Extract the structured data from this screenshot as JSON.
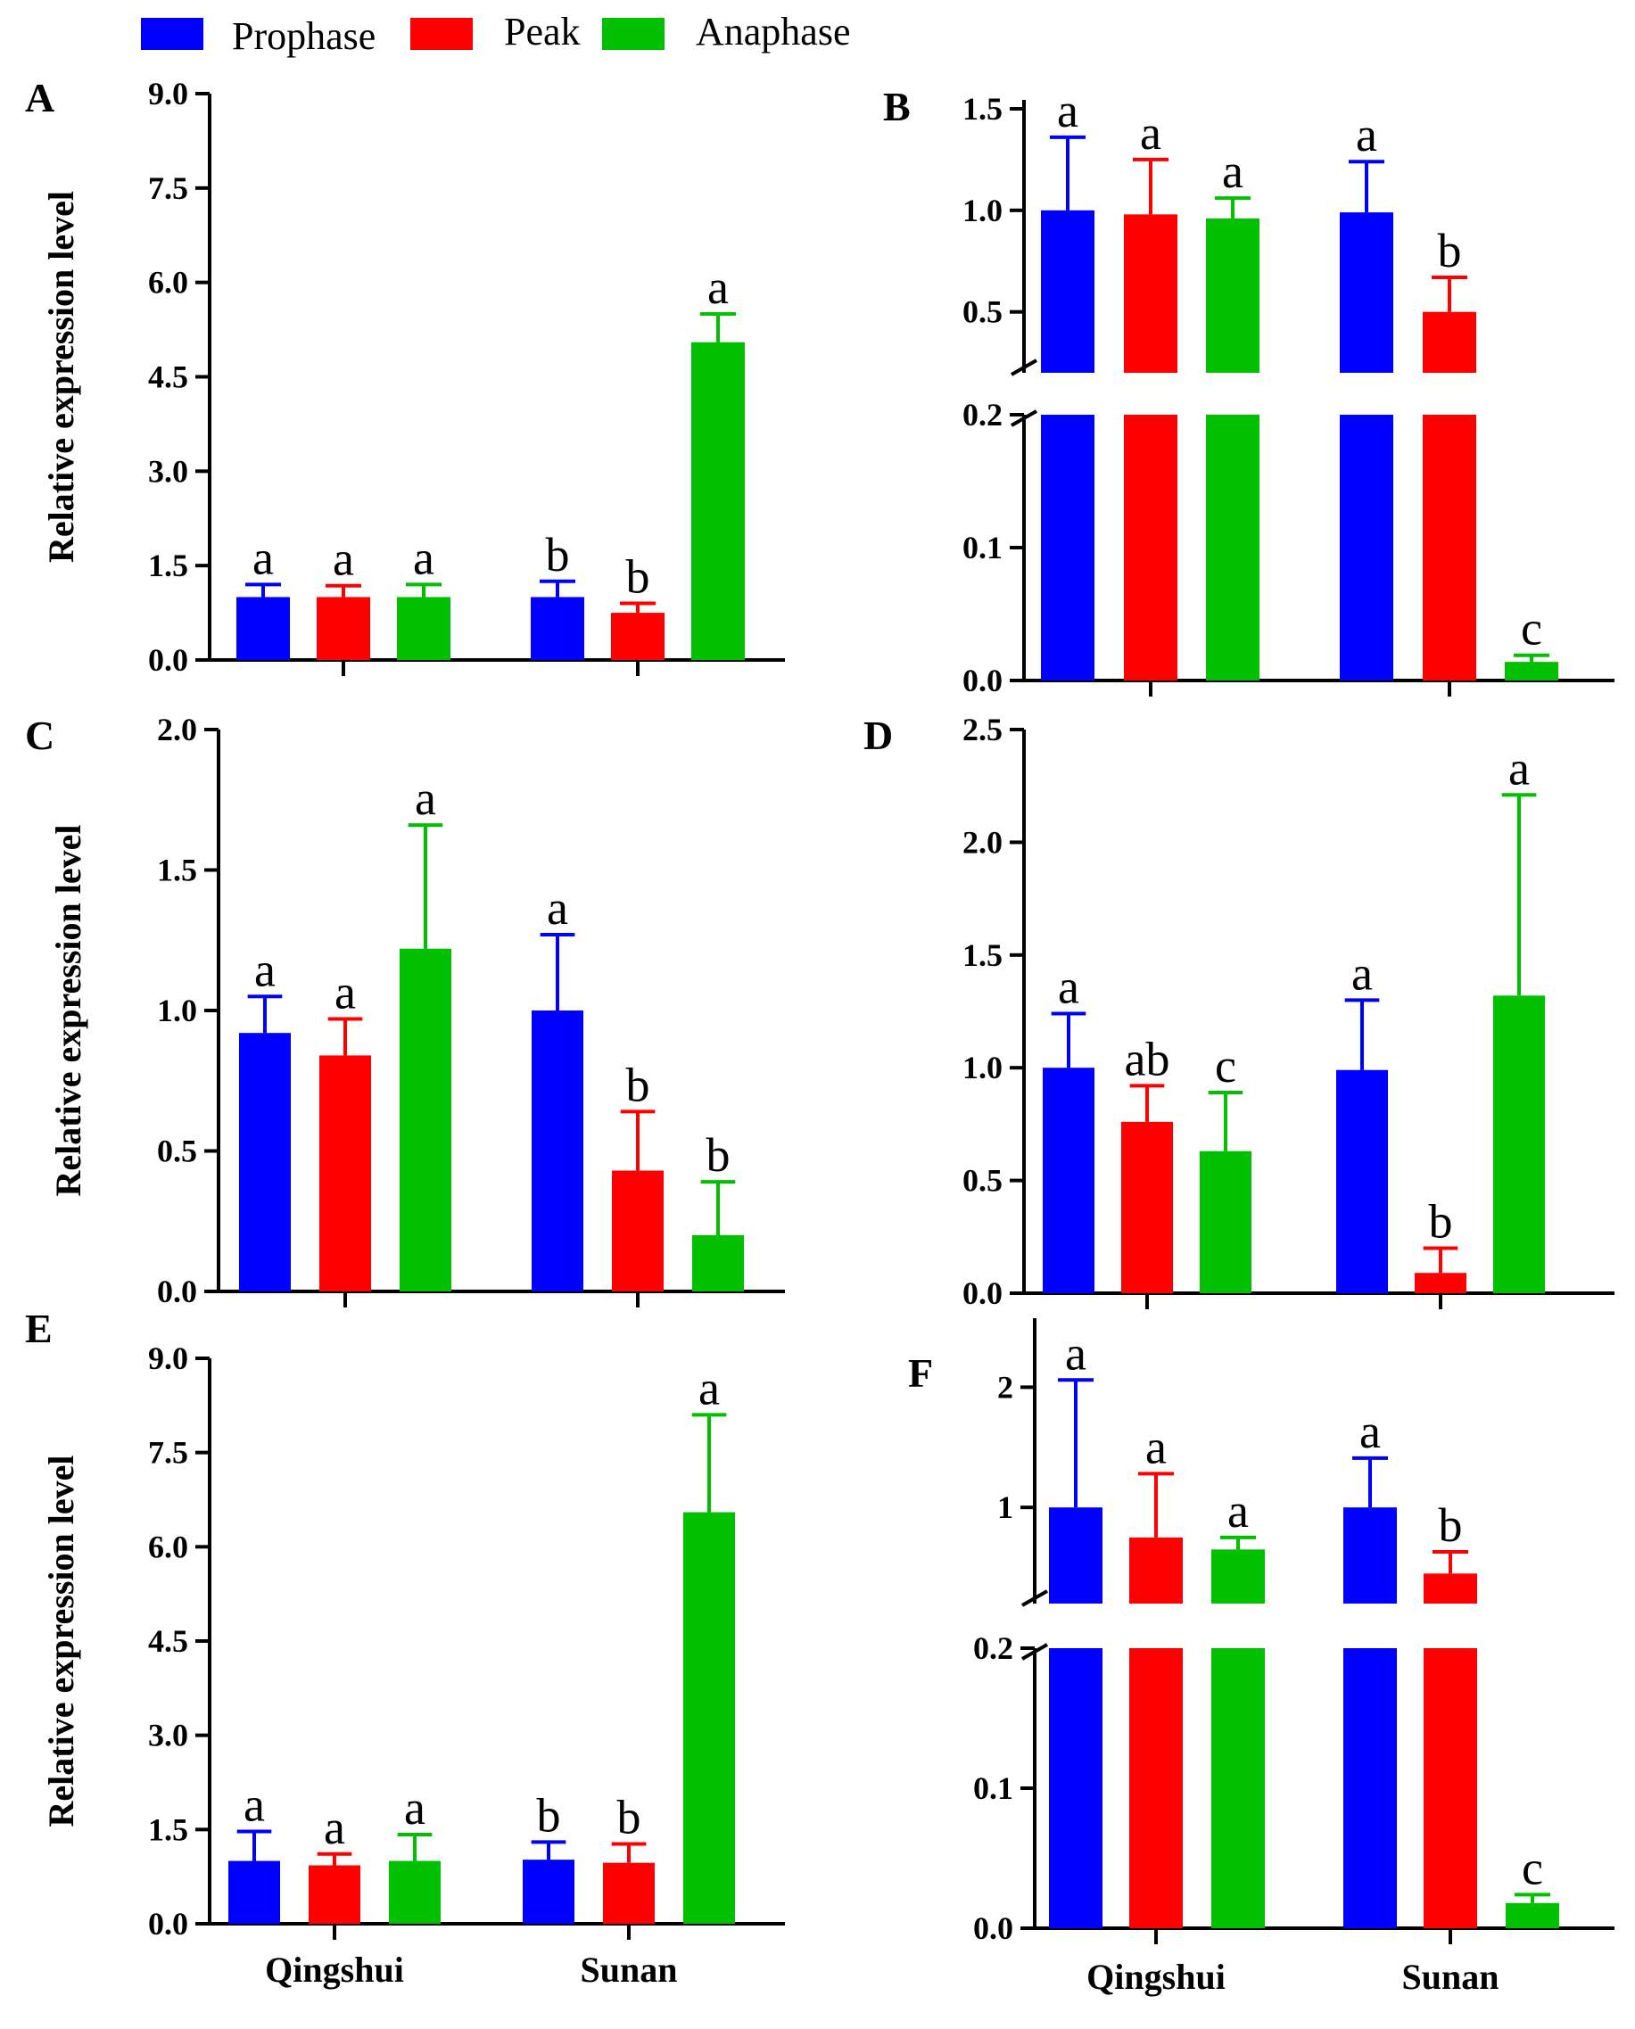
{
  "legend": [
    {
      "label": "Prophase",
      "color": "#0000ff"
    },
    {
      "label": "Peak",
      "color": "#ff0000"
    },
    {
      "label": "Anaphase",
      "color": "#00c000"
    }
  ],
  "chart_data": [
    {
      "panel": "A",
      "type": "bar",
      "ylabel": "Relative expression level",
      "categories": [
        "",
        ""
      ],
      "ylim": [
        0,
        9.0
      ],
      "yticks": [
        "0.0",
        "1.5",
        "3.0",
        "4.5",
        "6.0",
        "7.5",
        "9.0"
      ],
      "series": [
        {
          "name": "Prophase",
          "values": [
            1.0,
            1.0
          ],
          "errors": [
            0.2,
            0.25
          ],
          "letters": [
            "a",
            "b"
          ]
        },
        {
          "name": "Peak",
          "values": [
            1.0,
            0.75
          ],
          "errors": [
            0.18,
            0.15
          ],
          "letters": [
            "a",
            "b"
          ]
        },
        {
          "name": "Anaphase",
          "values": [
            1.0,
            5.05
          ],
          "errors": [
            0.2,
            0.45
          ],
          "letters": [
            "a",
            "a"
          ]
        }
      ]
    },
    {
      "panel": "B",
      "type": "bar",
      "ylabel": "",
      "categories": [
        "",
        ""
      ],
      "broken_axis": true,
      "lower_range": [
        0,
        0.2
      ],
      "upper_range": [
        0.2,
        1.5
      ],
      "yticks_lower": [
        "0.0",
        "0.1",
        "0.2"
      ],
      "yticks_upper": [
        "0.5",
        "1.0",
        "1.5"
      ],
      "series": [
        {
          "name": "Prophase",
          "values": [
            1.0,
            0.99
          ],
          "errors": [
            0.36,
            0.25
          ],
          "letters": [
            "a",
            "a"
          ]
        },
        {
          "name": "Peak",
          "values": [
            0.98,
            0.5
          ],
          "errors": [
            0.27,
            0.17
          ],
          "letters": [
            "a",
            "b"
          ]
        },
        {
          "name": "Anaphase",
          "values": [
            0.96,
            0.014
          ],
          "errors": [
            0.1,
            0.005
          ],
          "letters": [
            "a",
            "c"
          ]
        }
      ]
    },
    {
      "panel": "C",
      "type": "bar",
      "ylabel": "Relative expression level",
      "categories": [
        "",
        ""
      ],
      "ylim": [
        0,
        2.0
      ],
      "yticks": [
        "0.0",
        "0.5",
        "1.0",
        "1.5",
        "2.0"
      ],
      "series": [
        {
          "name": "Prophase",
          "values": [
            0.92,
            1.0
          ],
          "errors": [
            0.13,
            0.27
          ],
          "letters": [
            "a",
            "a"
          ]
        },
        {
          "name": "Peak",
          "values": [
            0.84,
            0.43
          ],
          "errors": [
            0.13,
            0.21
          ],
          "letters": [
            "a",
            "b"
          ]
        },
        {
          "name": "Anaphase",
          "values": [
            1.22,
            0.2
          ],
          "errors": [
            0.44,
            0.19
          ],
          "letters": [
            "a",
            "b"
          ]
        }
      ]
    },
    {
      "panel": "D",
      "type": "bar",
      "ylabel": "",
      "categories": [
        "",
        ""
      ],
      "ylim": [
        0,
        2.5
      ],
      "yticks": [
        "0.0",
        "0.5",
        "1.0",
        "1.5",
        "2.0",
        "2.5"
      ],
      "series": [
        {
          "name": "Prophase",
          "values": [
            1.0,
            0.99
          ],
          "errors": [
            0.24,
            0.31
          ],
          "letters": [
            "a",
            "a"
          ]
        },
        {
          "name": "Peak",
          "values": [
            0.76,
            0.09
          ],
          "errors": [
            0.16,
            0.11
          ],
          "letters": [
            "ab",
            "b"
          ]
        },
        {
          "name": "Anaphase",
          "values": [
            0.63,
            1.32
          ],
          "errors": [
            0.26,
            0.89
          ],
          "letters": [
            "c",
            "a"
          ]
        }
      ]
    },
    {
      "panel": "E",
      "type": "bar",
      "ylabel": "Relative expression level",
      "categories": [
        "Qingshui",
        "Sunan"
      ],
      "ylim": [
        0,
        9.0
      ],
      "yticks": [
        "0.0",
        "1.5",
        "3.0",
        "4.5",
        "6.0",
        "7.5",
        "9.0"
      ],
      "series": [
        {
          "name": "Prophase",
          "values": [
            1.0,
            1.02
          ],
          "errors": [
            0.47,
            0.28
          ],
          "letters": [
            "a",
            "b"
          ]
        },
        {
          "name": "Peak",
          "values": [
            0.93,
            0.97
          ],
          "errors": [
            0.18,
            0.3
          ],
          "letters": [
            "a",
            "b"
          ]
        },
        {
          "name": "Anaphase",
          "values": [
            1.0,
            6.55
          ],
          "errors": [
            0.42,
            1.55
          ],
          "letters": [
            "a",
            "a"
          ]
        }
      ]
    },
    {
      "panel": "F",
      "type": "bar",
      "ylabel": "",
      "categories": [
        "Qingshui",
        "Sunan"
      ],
      "broken_axis": true,
      "lower_range": [
        0,
        0.2
      ],
      "upper_range": [
        0.2,
        2.5
      ],
      "yticks_lower": [
        "0.0",
        "0.1",
        "0.2"
      ],
      "yticks_upper": [
        "1",
        "2"
      ],
      "series": [
        {
          "name": "Prophase",
          "values": [
            1.0,
            1.0
          ],
          "errors": [
            1.06,
            0.41
          ],
          "letters": [
            "a",
            "a"
          ]
        },
        {
          "name": "Peak",
          "values": [
            0.75,
            0.45
          ],
          "errors": [
            0.53,
            0.18
          ],
          "letters": [
            "a",
            "b"
          ]
        },
        {
          "name": "Anaphase",
          "values": [
            0.65,
            0.018
          ],
          "errors": [
            0.1,
            0.006
          ],
          "letters": [
            "a",
            "c"
          ]
        }
      ]
    }
  ]
}
